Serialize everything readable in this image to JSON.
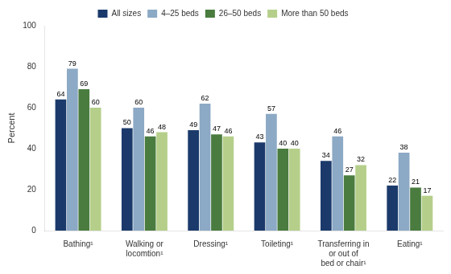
{
  "chart_data": {
    "type": "bar",
    "categories": [
      "Bathing¹",
      "Walking or\nlocomtion¹",
      "Dressing¹",
      "Toileting¹",
      "Transferring in\nor out of\nbed or chair¹",
      "Eating¹"
    ],
    "series": [
      {
        "name": "All sizes",
        "color": "#1b3a6b",
        "values": [
          64,
          50,
          49,
          43,
          34,
          22
        ]
      },
      {
        "name": "4–25 beds",
        "color": "#8ca9c5",
        "values": [
          79,
          60,
          62,
          57,
          46,
          38
        ]
      },
      {
        "name": "26–50 beds",
        "color": "#4a7c3f",
        "values": [
          69,
          46,
          47,
          40,
          27,
          21
        ]
      },
      {
        "name": "More than 50 beds",
        "color": "#b5cf8a",
        "values": [
          60,
          48,
          46,
          40,
          32,
          17
        ]
      }
    ],
    "ylabel": "Percent",
    "ylim": [
      0,
      100
    ],
    "yticks": [
      0,
      20,
      40,
      60,
      80,
      100
    ],
    "grid": false,
    "legend": "top",
    "data_labels": true
  }
}
